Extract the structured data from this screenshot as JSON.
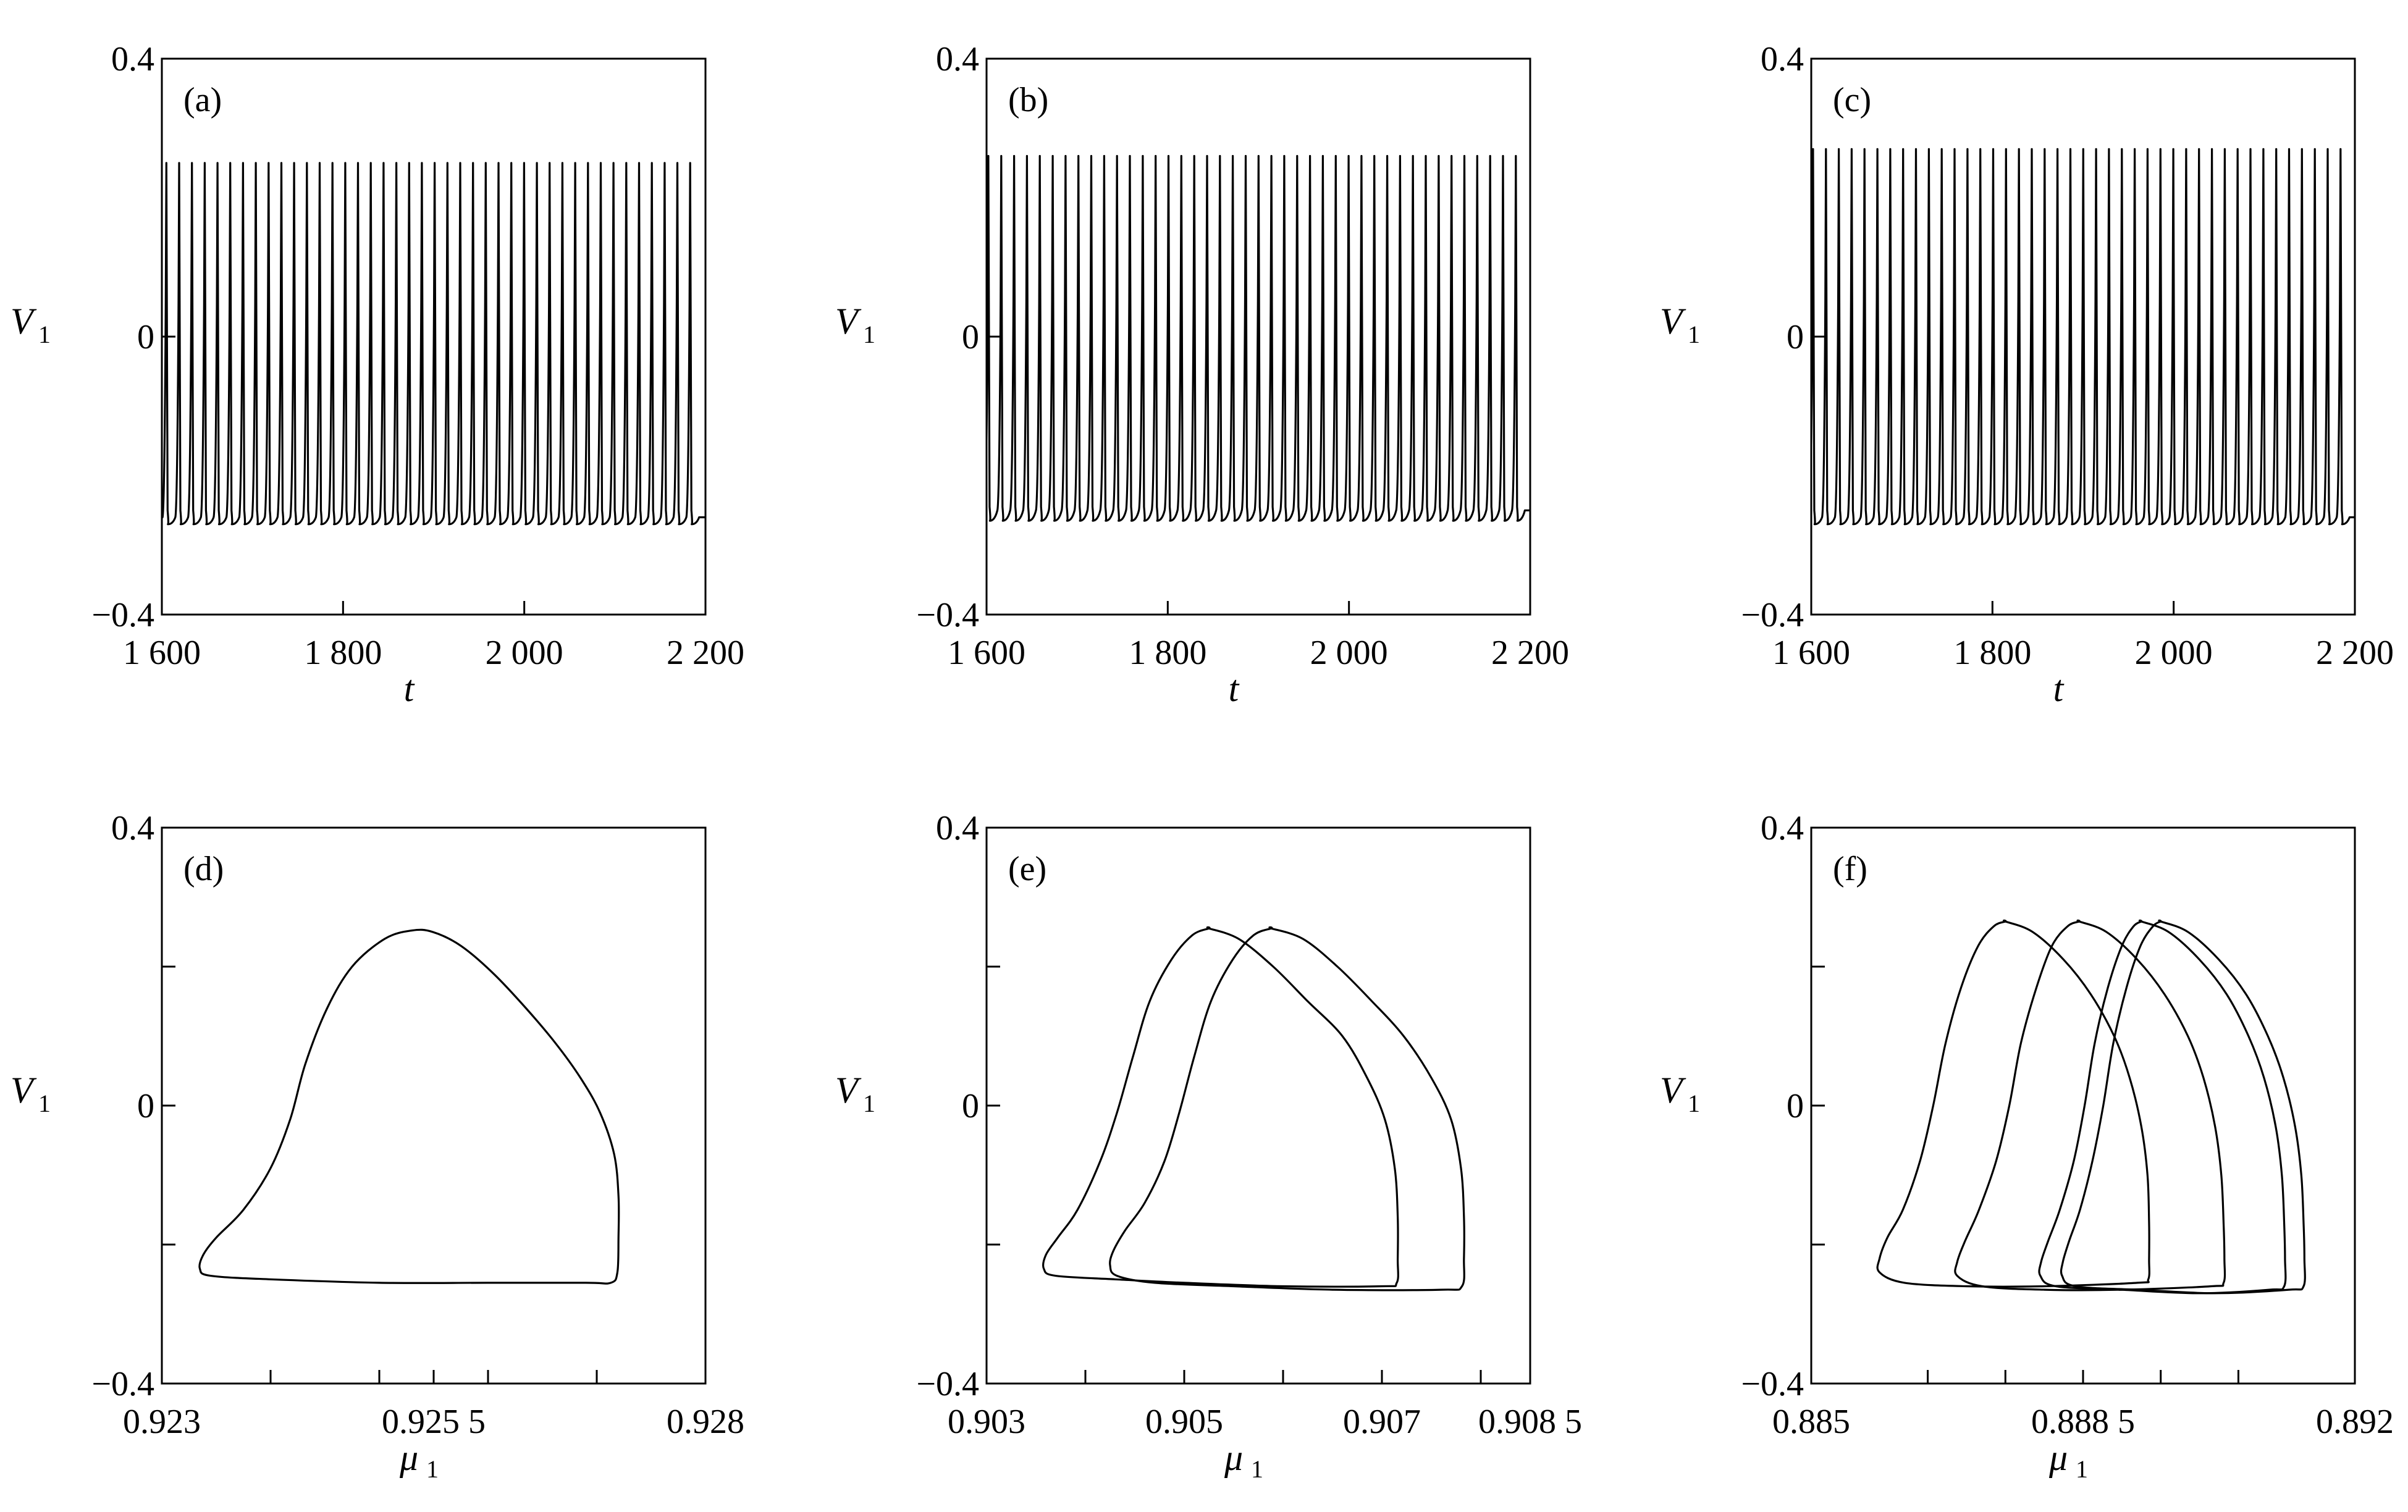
{
  "chart_data": [
    {
      "type": "line",
      "panel": "(a)",
      "xlabel": "t",
      "ylabel": "V",
      "ylabel_sub": "1",
      "xlim": [
        1600,
        2200
      ],
      "ylim": [
        -0.4,
        0.4
      ],
      "xticks": [
        1600,
        1800,
        2000,
        2200
      ],
      "xtick_labels": [
        "1 600",
        "1 800",
        "2 000",
        "2 200"
      ],
      "yticks": [
        0.4,
        0,
        -0.4
      ],
      "ytick_labels": [
        "0.4",
        "0",
        "−0.4"
      ],
      "series": [
        {
          "spike_count": 42,
          "period": 14.1,
          "first_spike_t": 1605,
          "v_peak": 0.25,
          "v_rest": -0.26,
          "v_trough": -0.27
        }
      ]
    },
    {
      "type": "line",
      "panel": "(b)",
      "xlabel": "t",
      "ylabel": "V",
      "ylabel_sub": "1",
      "xlim": [
        1600,
        2200
      ],
      "ylim": [
        -0.4,
        0.4
      ],
      "xticks": [
        1600,
        1800,
        2000,
        2200
      ],
      "xtick_labels": [
        "1 600",
        "1 800",
        "2 000",
        "2 200"
      ],
      "yticks": [
        0.4,
        0,
        -0.4
      ],
      "ytick_labels": [
        "0.4",
        "0",
        "−0.4"
      ],
      "series": [
        {
          "spike_count": 42,
          "period": 14.2,
          "first_spike_t": 1602,
          "v_peak": 0.26,
          "v_rest": -0.25,
          "v_trough": -0.265
        }
      ]
    },
    {
      "type": "line",
      "panel": "(c)",
      "xlabel": "t",
      "ylabel": "V",
      "ylabel_sub": "1",
      "xlim": [
        1600,
        2200
      ],
      "ylim": [
        -0.4,
        0.4
      ],
      "xticks": [
        1600,
        1800,
        2000,
        2200
      ],
      "xtick_labels": [
        "1 600",
        "1 800",
        "2 000",
        "2 200"
      ],
      "yticks": [
        0.4,
        0,
        -0.4
      ],
      "ytick_labels": [
        "0.4",
        "0",
        "−0.4"
      ],
      "series": [
        {
          "spike_count": 42,
          "period": 14.2,
          "first_spike_t": 1602,
          "v_peak": 0.27,
          "v_rest": -0.26,
          "v_trough": -0.27
        }
      ]
    },
    {
      "type": "line",
      "panel": "(d)",
      "xlabel": "μ",
      "xlabel_sub": "1",
      "ylabel": "V",
      "ylabel_sub": "1",
      "xlim": [
        0.923,
        0.928
      ],
      "ylim": [
        -0.4,
        0.4
      ],
      "xticks": [
        0.923,
        0.9255,
        0.928
      ],
      "xtick_labels": [
        "0.923",
        "0.925 5",
        "0.928"
      ],
      "minor_xticks": [
        0.924,
        0.925,
        0.926,
        0.927
      ],
      "yticks": [
        0.4,
        0,
        -0.4
      ],
      "ytick_labels": [
        "0.4",
        "0",
        "−0.4"
      ],
      "minor_yticks": [
        0.2,
        -0.2
      ],
      "series": [
        {
          "name": "",
          "points": [
            [
              0.92549,
              0.25
            ],
            [
              0.92575,
              0.23
            ],
            [
              0.92605,
              0.19
            ],
            [
              0.92635,
              0.14
            ],
            [
              0.92662,
              0.09
            ],
            [
              0.92685,
              0.04
            ],
            [
              0.92703,
              -0.01
            ],
            [
              0.92716,
              -0.07
            ],
            [
              0.9272,
              -0.13
            ],
            [
              0.9272,
              -0.19
            ],
            [
              0.92719,
              -0.24
            ],
            [
              0.92713,
              -0.255
            ],
            [
              0.9269,
              -0.255
            ],
            [
              0.926,
              -0.255
            ],
            [
              0.925,
              -0.255
            ],
            [
              0.924,
              -0.25
            ],
            [
              0.92345,
              -0.245
            ],
            [
              0.92335,
              -0.235
            ],
            [
              0.92338,
              -0.215
            ],
            [
              0.9235,
              -0.19
            ],
            [
              0.92375,
              -0.15
            ],
            [
              0.924,
              -0.09
            ],
            [
              0.92418,
              -0.02
            ],
            [
              0.92432,
              0.06
            ],
            [
              0.92452,
              0.14
            ],
            [
              0.92475,
              0.2
            ],
            [
              0.92505,
              0.24
            ],
            [
              0.9253,
              0.252
            ]
          ]
        }
      ]
    },
    {
      "type": "line",
      "panel": "(e)",
      "xlabel": "μ",
      "xlabel_sub": "1",
      "ylabel": "V",
      "ylabel_sub": "1",
      "xlim": [
        0.903,
        0.9085
      ],
      "ylim": [
        -0.4,
        0.4
      ],
      "xticks": [
        0.903,
        0.905,
        0.907,
        0.9085
      ],
      "xtick_labels": [
        "0.903",
        "0.905",
        "0.907",
        "0.908 5"
      ],
      "minor_xticks": [
        0.904,
        0.906,
        0.908
      ],
      "yticks": [
        0.4,
        0,
        -0.4
      ],
      "ytick_labels": [
        "0.4",
        "0",
        "−0.4"
      ],
      "minor_yticks": [
        0.2,
        -0.2
      ],
      "series": [
        {
          "name": "",
          "points": [
            [
              0.90525,
              0.255
            ],
            [
              0.90555,
              0.24
            ],
            [
              0.9059,
              0.2
            ],
            [
              0.90625,
              0.15
            ],
            [
              0.9066,
              0.1
            ],
            [
              0.90685,
              0.04
            ],
            [
              0.90703,
              -0.02
            ],
            [
              0.90713,
              -0.09
            ],
            [
              0.90716,
              -0.16
            ],
            [
              0.90716,
              -0.22
            ],
            [
              0.90715,
              -0.255
            ],
            [
              0.907,
              -0.26
            ],
            [
              0.906,
              -0.26
            ],
            [
              0.905,
              -0.255
            ],
            [
              0.9043,
              -0.25
            ],
            [
              0.9037,
              -0.245
            ],
            [
              0.90358,
              -0.235
            ],
            [
              0.9036,
              -0.215
            ],
            [
              0.90372,
              -0.19
            ],
            [
              0.90392,
              -0.15
            ],
            [
              0.90415,
              -0.08
            ],
            [
              0.90432,
              -0.01
            ],
            [
              0.90448,
              0.07
            ],
            [
              0.90465,
              0.15
            ],
            [
              0.90487,
              0.21
            ],
            [
              0.90508,
              0.245
            ],
            [
              0.90525,
              0.255
            ]
          ]
        },
        {
          "name": "",
          "points": [
            [
              0.90588,
              0.255
            ],
            [
              0.9062,
              0.24
            ],
            [
              0.90655,
              0.2
            ],
            [
              0.9069,
              0.15
            ],
            [
              0.90722,
              0.1
            ],
            [
              0.9075,
              0.04
            ],
            [
              0.9077,
              -0.02
            ],
            [
              0.9078,
              -0.09
            ],
            [
              0.90783,
              -0.16
            ],
            [
              0.90783,
              -0.22
            ],
            [
              0.90781,
              -0.26
            ],
            [
              0.9076,
              -0.265
            ],
            [
              0.9065,
              -0.265
            ],
            [
              0.9055,
              -0.26
            ],
            [
              0.9047,
              -0.255
            ],
            [
              0.90432,
              -0.245
            ],
            [
              0.90425,
              -0.23
            ],
            [
              0.90428,
              -0.21
            ],
            [
              0.9044,
              -0.18
            ],
            [
              0.9046,
              -0.14
            ],
            [
              0.9048,
              -0.08
            ],
            [
              0.90495,
              -0.01
            ],
            [
              0.9051,
              0.07
            ],
            [
              0.90527,
              0.15
            ],
            [
              0.90549,
              0.21
            ],
            [
              0.9057,
              0.245
            ],
            [
              0.90588,
              0.255
            ]
          ]
        }
      ]
    },
    {
      "type": "line",
      "panel": "(f)",
      "xlabel": "μ",
      "xlabel_sub": "1",
      "ylabel": "V",
      "ylabel_sub": "1",
      "xlim": [
        0.885,
        0.892
      ],
      "ylim": [
        -0.4,
        0.4
      ],
      "xticks": [
        0.885,
        0.8885,
        0.892
      ],
      "xtick_labels": [
        "0.885",
        "0.888 5",
        "0.892"
      ],
      "minor_xticks": [
        0.8865,
        0.8875,
        0.8895,
        0.8905
      ],
      "yticks": [
        0.4,
        0,
        -0.4
      ],
      "ytick_labels": [
        "0.4",
        "0",
        "−0.4"
      ],
      "minor_yticks": [
        0.2,
        -0.2
      ],
      "series": [
        {
          "name": "",
          "points": [
            [
              0.8875,
              0.265
            ],
            [
              0.88785,
              0.25
            ],
            [
              0.88825,
              0.21
            ],
            [
              0.8886,
              0.16
            ],
            [
              0.8889,
              0.1
            ],
            [
              0.8891,
              0.04
            ],
            [
              0.88925,
              -0.03
            ],
            [
              0.88933,
              -0.1
            ],
            [
              0.88935,
              -0.17
            ],
            [
              0.88935,
              -0.22
            ],
            [
              0.88934,
              -0.25
            ],
            [
              0.8892,
              -0.255
            ],
            [
              0.888,
              -0.26
            ],
            [
              0.887,
              -0.26
            ],
            [
              0.8862,
              -0.255
            ],
            [
              0.88588,
              -0.24
            ],
            [
              0.88588,
              -0.22
            ],
            [
              0.88598,
              -0.19
            ],
            [
              0.88618,
              -0.15
            ],
            [
              0.8864,
              -0.08
            ],
            [
              0.88657,
              0.0
            ],
            [
              0.88673,
              0.09
            ],
            [
              0.88693,
              0.17
            ],
            [
              0.88715,
              0.23
            ],
            [
              0.88735,
              0.258
            ],
            [
              0.8875,
              0.265
            ]
          ]
        },
        {
          "name": "",
          "points": [
            [
              0.88845,
              0.265
            ],
            [
              0.8888,
              0.25
            ],
            [
              0.8892,
              0.21
            ],
            [
              0.88955,
              0.16
            ],
            [
              0.88985,
              0.1
            ],
            [
              0.89005,
              0.04
            ],
            [
              0.8902,
              -0.03
            ],
            [
              0.89028,
              -0.1
            ],
            [
              0.89031,
              -0.17
            ],
            [
              0.89032,
              -0.22
            ],
            [
              0.89031,
              -0.255
            ],
            [
              0.89015,
              -0.26
            ],
            [
              0.889,
              -0.265
            ],
            [
              0.888,
              -0.265
            ],
            [
              0.8872,
              -0.26
            ],
            [
              0.88688,
              -0.245
            ],
            [
              0.88688,
              -0.225
            ],
            [
              0.88698,
              -0.195
            ],
            [
              0.88716,
              -0.15
            ],
            [
              0.88738,
              -0.08
            ],
            [
              0.88755,
              0.0
            ],
            [
              0.8877,
              0.09
            ],
            [
              0.8879,
              0.17
            ],
            [
              0.8881,
              0.23
            ],
            [
              0.8883,
              0.258
            ],
            [
              0.88845,
              0.265
            ]
          ]
        },
        {
          "name": "",
          "points": [
            [
              0.88925,
              0.265
            ],
            [
              0.8896,
              0.25
            ],
            [
              0.89,
              0.21
            ],
            [
              0.89035,
              0.16
            ],
            [
              0.89063,
              0.1
            ],
            [
              0.89083,
              0.04
            ],
            [
              0.89098,
              -0.03
            ],
            [
              0.89106,
              -0.1
            ],
            [
              0.89109,
              -0.17
            ],
            [
              0.8911,
              -0.22
            ],
            [
              0.89109,
              -0.26
            ],
            [
              0.8909,
              -0.265
            ],
            [
              0.89,
              -0.27
            ],
            [
              0.889,
              -0.265
            ],
            [
              0.88815,
              -0.26
            ],
            [
              0.88795,
              -0.245
            ],
            [
              0.88796,
              -0.225
            ],
            [
              0.88805,
              -0.195
            ],
            [
              0.8882,
              -0.15
            ],
            [
              0.88838,
              -0.08
            ],
            [
              0.88852,
              0.0
            ],
            [
              0.88865,
              0.09
            ],
            [
              0.88882,
              0.17
            ],
            [
              0.889,
              0.23
            ],
            [
              0.88915,
              0.258
            ],
            [
              0.88925,
              0.265
            ]
          ]
        },
        {
          "name": "",
          "points": [
            [
              0.8895,
              0.265
            ],
            [
              0.88985,
              0.25
            ],
            [
              0.89025,
              0.21
            ],
            [
              0.8906,
              0.16
            ],
            [
              0.89088,
              0.1
            ],
            [
              0.89108,
              0.04
            ],
            [
              0.89123,
              -0.03
            ],
            [
              0.89131,
              -0.1
            ],
            [
              0.89134,
              -0.17
            ],
            [
              0.89135,
              -0.22
            ],
            [
              0.89134,
              -0.26
            ],
            [
              0.89115,
              -0.265
            ],
            [
              0.8902,
              -0.27
            ],
            [
              0.8892,
              -0.265
            ],
            [
              0.8884,
              -0.26
            ],
            [
              0.88823,
              -0.245
            ],
            [
              0.88824,
              -0.225
            ],
            [
              0.88832,
              -0.195
            ],
            [
              0.88846,
              -0.15
            ],
            [
              0.88862,
              -0.08
            ],
            [
              0.88876,
              0.0
            ],
            [
              0.88889,
              0.09
            ],
            [
              0.88906,
              0.17
            ],
            [
              0.88924,
              0.23
            ],
            [
              0.8894,
              0.258
            ],
            [
              0.8895,
              0.265
            ]
          ]
        }
      ]
    }
  ]
}
